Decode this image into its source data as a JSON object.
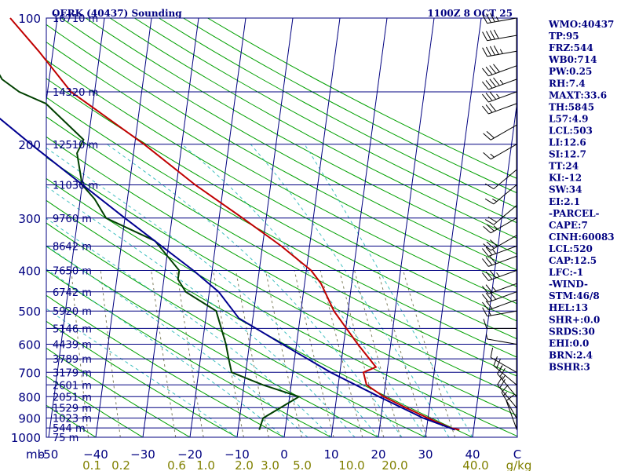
{
  "header": {
    "station": "OERK (40437) Sounding",
    "time": "1100Z  8 OCT 25"
  },
  "chart_data": {
    "type": "line",
    "title": "OERK (40437) Sounding",
    "chart_kind": "skew-T log-P",
    "x_unit_label": "C",
    "mixing_ratio_unit_label": "g/kg",
    "pressure_axis_caption": "mb",
    "pressure_ticks": [
      100,
      200,
      300,
      400,
      500,
      600,
      700,
      800,
      900,
      1000
    ],
    "pressure_tick_labels": [
      "100",
      "200",
      "300",
      "400",
      "500",
      "600",
      "700",
      "800",
      "900",
      "1000"
    ],
    "temperature_ticks": [
      -50,
      -40,
      -30,
      -20,
      -10,
      0,
      10,
      20,
      30,
      40
    ],
    "temperature_tick_labels": [
      "-50",
      "−40",
      "−30",
      "−20",
      "−10",
      "0",
      "10",
      "20",
      "30",
      "40"
    ],
    "mixing_ratio_labels": [
      "0.1",
      "0.2",
      "0.6",
      "1.0",
      "2.0",
      "3.0",
      "5.0",
      "10.0",
      "20.0",
      "40.0"
    ],
    "height_levels": [
      {
        "p": 100,
        "label": "16710 m"
      },
      {
        "p": 150,
        "label": "14320 m"
      },
      {
        "p": 200,
        "label": "12510 m"
      },
      {
        "p": 250,
        "label": "11030 m"
      },
      {
        "p": 300,
        "label": "9760 m"
      },
      {
        "p": 350,
        "label": "8642 m"
      },
      {
        "p": 400,
        "label": "7650 m"
      },
      {
        "p": 450,
        "label": "6742 m"
      },
      {
        "p": 500,
        "label": "5920 m"
      },
      {
        "p": 550,
        "label": "5146 m"
      },
      {
        "p": 600,
        "label": "4439 m"
      },
      {
        "p": 650,
        "label": "3789 m"
      },
      {
        "p": 700,
        "label": "3179 m"
      },
      {
        "p": 750,
        "label": "2601 m"
      },
      {
        "p": 800,
        "label": "2051 m"
      },
      {
        "p": 850,
        "label": "1529 m"
      },
      {
        "p": 900,
        "label": "1023 m"
      },
      {
        "p": 950,
        "label": "544 m"
      },
      {
        "p": 1000,
        "label": "75 m"
      }
    ],
    "series": [
      {
        "name": "temperature",
        "color": "#c00000",
        "points": [
          {
            "p": 960,
            "t": 37.0
          },
          {
            "p": 950,
            "t": 35.0
          },
          {
            "p": 900,
            "t": 30.0
          },
          {
            "p": 850,
            "t": 25.0
          },
          {
            "p": 800,
            "t": 20.0
          },
          {
            "p": 750,
            "t": 16.0
          },
          {
            "p": 700,
            "t": 15.0
          },
          {
            "p": 680,
            "t": 17.5
          },
          {
            "p": 600,
            "t": 13.0
          },
          {
            "p": 500,
            "t": 7.0
          },
          {
            "p": 430,
            "t": 3.5
          },
          {
            "p": 400,
            "t": 1.0
          },
          {
            "p": 350,
            "t": -6.0
          },
          {
            "p": 300,
            "t": -15.0
          },
          {
            "p": 250,
            "t": -26.0
          },
          {
            "p": 200,
            "t": -38.0
          },
          {
            "p": 150,
            "t": -55.0
          },
          {
            "p": 120,
            "t": -63.0
          },
          {
            "p": 100,
            "t": -70.0
          }
        ]
      },
      {
        "name": "dewpoint",
        "color": "#004000",
        "points": [
          {
            "p": 960,
            "t": -5.5
          },
          {
            "p": 900,
            "t": -5.0
          },
          {
            "p": 800,
            "t": 2.0
          },
          {
            "p": 750,
            "t": -6.0
          },
          {
            "p": 700,
            "t": -13.0
          },
          {
            "p": 650,
            "t": -14.0
          },
          {
            "p": 600,
            "t": -15.0
          },
          {
            "p": 500,
            "t": -18.0
          },
          {
            "p": 450,
            "t": -25.0
          },
          {
            "p": 420,
            "t": -27.0
          },
          {
            "p": 400,
            "t": -27.0
          },
          {
            "p": 340,
            "t": -33.0
          },
          {
            "p": 300,
            "t": -44.0
          },
          {
            "p": 270,
            "t": -47.0
          },
          {
            "p": 250,
            "t": -50.0
          },
          {
            "p": 210,
            "t": -52.0
          },
          {
            "p": 195,
            "t": -51.0
          },
          {
            "p": 160,
            "t": -60.0
          },
          {
            "p": 150,
            "t": -66.0
          },
          {
            "p": 140,
            "t": -70.0
          },
          {
            "p": 130,
            "t": -72.0
          },
          {
            "p": 110,
            "t": -78.0
          },
          {
            "p": 100,
            "t": -82.0
          }
        ]
      },
      {
        "name": "parcel",
        "color": "#000090",
        "points": [
          {
            "p": 960,
            "t": 36.0
          },
          {
            "p": 900,
            "t": 29.0
          },
          {
            "p": 800,
            "t": 19.0
          },
          {
            "p": 700,
            "t": 8.0
          },
          {
            "p": 600,
            "t": -3.0
          },
          {
            "p": 520,
            "t": -13.0
          },
          {
            "p": 450,
            "t": -18.0
          },
          {
            "p": 400,
            "t": -24.0
          },
          {
            "p": 300,
            "t": -40.0
          },
          {
            "p": 200,
            "t": -62.0
          },
          {
            "p": 150,
            "t": -77.0
          },
          {
            "p": 120,
            "t": -88.0
          }
        ]
      }
    ],
    "winds": [
      {
        "p": 955,
        "dir": 340,
        "spd": 10
      },
      {
        "p": 900,
        "dir": 330,
        "spd": 15
      },
      {
        "p": 850,
        "dir": 320,
        "spd": 20
      },
      {
        "p": 800,
        "dir": 320,
        "spd": 25
      },
      {
        "p": 750,
        "dir": 310,
        "spd": 25
      },
      {
        "p": 700,
        "dir": 300,
        "spd": 10
      },
      {
        "p": 600,
        "dir": 280,
        "spd": 5
      },
      {
        "p": 550,
        "dir": 270,
        "spd": 10
      },
      {
        "p": 500,
        "dir": 260,
        "spd": 15
      },
      {
        "p": 470,
        "dir": 250,
        "spd": 20
      },
      {
        "p": 450,
        "dir": 250,
        "spd": 30
      },
      {
        "p": 430,
        "dir": 250,
        "spd": 25
      },
      {
        "p": 400,
        "dir": 250,
        "spd": 35
      },
      {
        "p": 370,
        "dir": 250,
        "spd": 30
      },
      {
        "p": 350,
        "dir": 250,
        "spd": 25
      },
      {
        "p": 330,
        "dir": 240,
        "spd": 30
      },
      {
        "p": 300,
        "dir": 240,
        "spd": 25
      },
      {
        "p": 280,
        "dir": 230,
        "spd": 20
      },
      {
        "p": 250,
        "dir": 230,
        "spd": 15
      },
      {
        "p": 230,
        "dir": 230,
        "spd": 10
      },
      {
        "p": 200,
        "dir": 240,
        "spd": 15
      },
      {
        "p": 180,
        "dir": 240,
        "spd": 20
      },
      {
        "p": 160,
        "dir": 250,
        "spd": 30
      },
      {
        "p": 150,
        "dir": 250,
        "spd": 35
      },
      {
        "p": 140,
        "dir": 250,
        "spd": 45
      },
      {
        "p": 130,
        "dir": 250,
        "spd": 40
      },
      {
        "p": 120,
        "dir": 260,
        "spd": 45
      },
      {
        "p": 110,
        "dir": 260,
        "spd": 40
      },
      {
        "p": 100,
        "dir": 260,
        "spd": 35
      }
    ]
  },
  "indices": [
    "WMO:40437",
    "TP:95",
    "FRZ:544",
    "WB0:714",
    "PW:0.25",
    "RH:7.4",
    "MAXT:33.6",
    "TH:5845",
    "L57:4.9",
    "LCL:503",
    "LI:12.6",
    "SI:12.7",
    "TT:24",
    "KI:-12",
    "SW:34",
    "EI:2.1",
    "-PARCEL-",
    "CAPE:7",
    "CINH:60083",
    "LCL:520",
    "CAP:12.5",
    "LFC:-1",
    "-WIND-",
    "STM:46/8",
    "HEL:13",
    "SHR+:0.0",
    "SRDS:30",
    "EHI:0.0",
    "BRN:2.4",
    "BSHR:3"
  ],
  "colors": {
    "isobar": "#000080",
    "isotherm": "#000080",
    "dry_adiabat": "#00a000",
    "moist_adiabat": "#40c0c0",
    "mixing_ratio": "#808060",
    "wind_barb": "#000000"
  }
}
